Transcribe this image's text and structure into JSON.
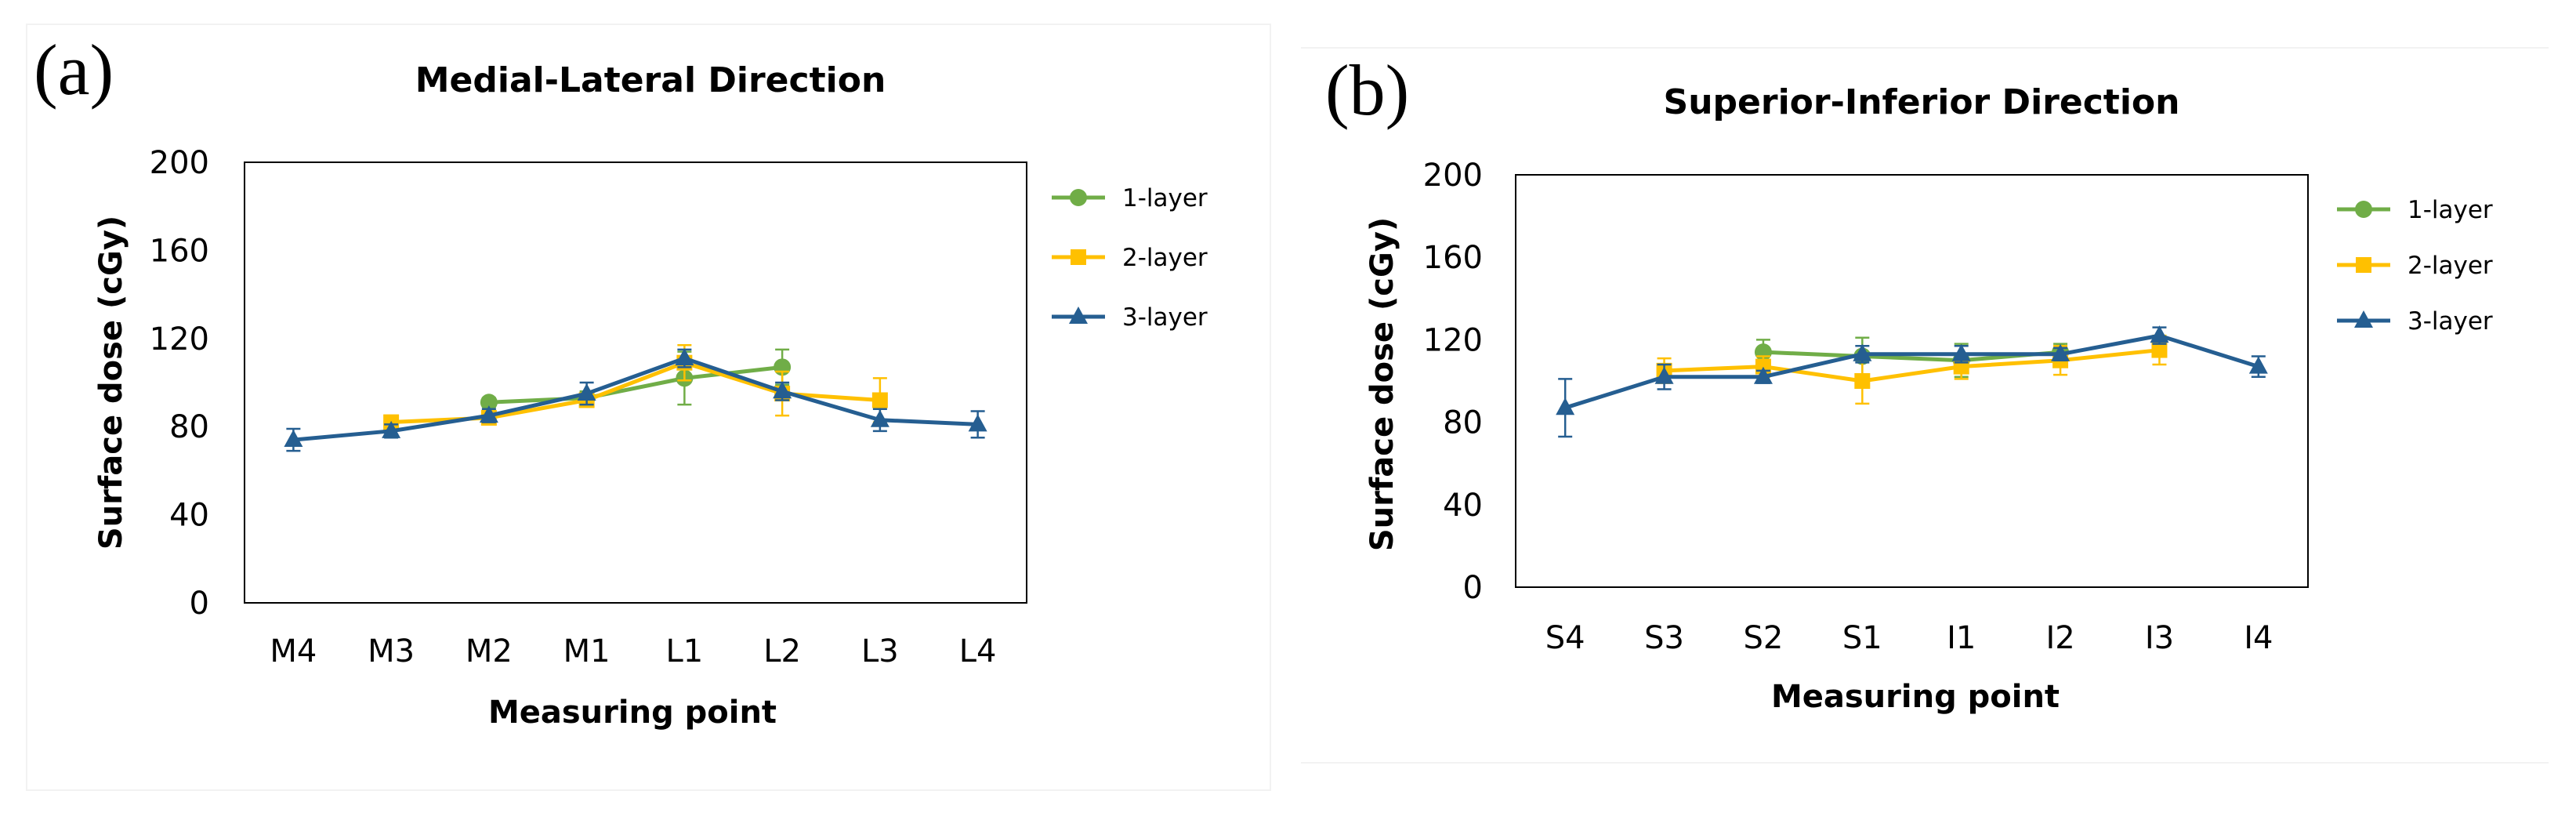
{
  "chart_data": [
    {
      "panel_label": "(a)",
      "type": "line",
      "title": "Medial-Lateral Direction",
      "xlabel": "Measuring point",
      "ylabel": "Surface dose (cGy)",
      "categories": [
        "M4",
        "M3",
        "M2",
        "M1",
        "L1",
        "L2",
        "L3",
        "L4"
      ],
      "ylim": [
        0,
        200
      ],
      "yticks": [
        0,
        40,
        80,
        120,
        160,
        200
      ],
      "legend": "right",
      "series": [
        {
          "name": "1-layer",
          "color": "#70AD47",
          "marker": "circle",
          "values": [
            null,
            null,
            91,
            93,
            102,
            107,
            null,
            null
          ],
          "errors": [
            null,
            null,
            2,
            3,
            12,
            8,
            null,
            null
          ]
        },
        {
          "name": "2-layer",
          "color": "#FFC000",
          "marker": "square",
          "values": [
            null,
            82,
            84,
            92,
            109,
            95,
            92,
            null
          ],
          "errors": [
            null,
            3,
            3,
            3,
            8,
            10,
            10,
            null
          ]
        },
        {
          "name": "3-layer",
          "color": "#255E91",
          "marker": "triangle",
          "values": [
            74,
            78,
            85,
            95,
            111,
            96,
            83,
            81
          ],
          "errors": [
            5,
            3,
            3,
            5,
            4,
            4,
            5,
            6
          ]
        }
      ]
    },
    {
      "panel_label": "(b)",
      "type": "line",
      "title": "Superior-Inferior Direction",
      "xlabel": "Measuring point",
      "ylabel": "Surface dose (cGy)",
      "categories": [
        "S4",
        "S3",
        "S2",
        "S1",
        "I1",
        "I2",
        "I3",
        "I4"
      ],
      "ylim": [
        0,
        200
      ],
      "yticks": [
        0,
        40,
        80,
        120,
        160,
        200
      ],
      "legend": "right",
      "series": [
        {
          "name": "1-layer",
          "color": "#70AD47",
          "marker": "circle",
          "values": [
            null,
            null,
            114,
            112,
            110,
            114,
            null,
            null
          ],
          "errors": [
            null,
            null,
            6,
            9,
            8,
            4,
            null,
            null
          ]
        },
        {
          "name": "2-layer",
          "color": "#FFC000",
          "marker": "square",
          "values": [
            null,
            105,
            107,
            100,
            107,
            110,
            115,
            null
          ],
          "errors": [
            null,
            6,
            5,
            11,
            6,
            7,
            7,
            null
          ]
        },
        {
          "name": "3-layer",
          "color": "#255E91",
          "marker": "triangle",
          "values": [
            87,
            102,
            102,
            113,
            113,
            113,
            122,
            107
          ],
          "errors": [
            14,
            6,
            3,
            4,
            4,
            3,
            4,
            5
          ]
        }
      ]
    }
  ]
}
